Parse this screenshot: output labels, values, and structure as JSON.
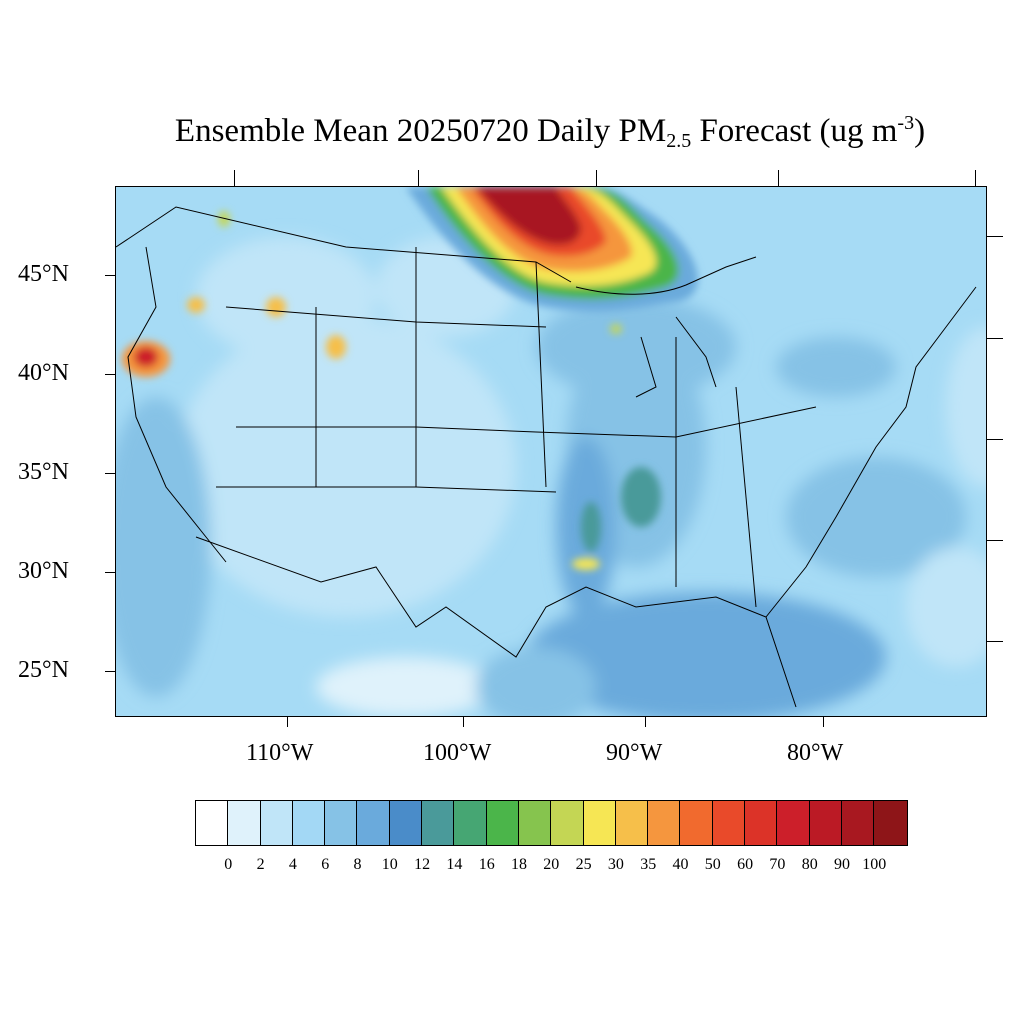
{
  "title": {
    "prefix": "Ensemble Mean 20250720 Daily PM",
    "subscript": "2.5",
    "middle": " Forecast (ug m",
    "superscript": "-3",
    "suffix": ")"
  },
  "lat_labels": [
    "45°N",
    "40°N",
    "35°N",
    "30°N",
    "25°N"
  ],
  "lon_labels": [
    "110°W",
    "100°W",
    "90°W",
    "80°W"
  ],
  "colorbar": {
    "labels": [
      "0",
      "2",
      "4",
      "6",
      "8",
      "10",
      "12",
      "14",
      "16",
      "18",
      "20",
      "25",
      "30",
      "35",
      "40",
      "50",
      "60",
      "70",
      "80",
      "90",
      "100"
    ],
    "colors": [
      "#ffffff",
      "#dff2fb",
      "#c0e5f8",
      "#a3d8f5",
      "#86c2e6",
      "#6aaadc",
      "#4a8cc9",
      "#4a9a9a",
      "#46a673",
      "#4bb54a",
      "#86c44e",
      "#c4d654",
      "#f6e654",
      "#f6bf4a",
      "#f5963e",
      "#f16a2e",
      "#e94a2a",
      "#dc3328",
      "#cc1f2a",
      "#bb1a25",
      "#a81820",
      "#8e1518"
    ]
  },
  "map_colors": {
    "background": "#a6dbf5",
    "smoke_core": "#a81820",
    "smoke_mid": "#e94a2a",
    "smoke_outer": "#f5963e",
    "smoke_edge": "#4bb54a"
  }
}
